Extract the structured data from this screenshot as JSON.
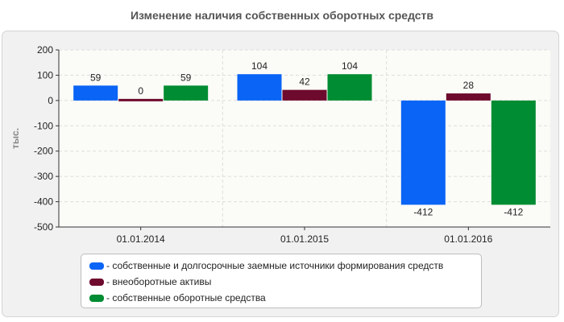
{
  "title": "Изменение наличия собственных оборотных средств",
  "colors": {
    "series": [
      "#0a64f5",
      "#6e0a2d",
      "#008c32"
    ],
    "grid": "#dddddd",
    "plot_bg": "#fbfbf7",
    "axis": "#333333"
  },
  "chart_data": {
    "type": "bar",
    "title": "Изменение наличия собственных оборотных средств",
    "ylabel": "тыс.",
    "xlabel": "",
    "categories": [
      "01.01.2014",
      "01.01.2015",
      "01.01.2016"
    ],
    "series": [
      {
        "name": "собственные и долгосрочные заемные источники формирования средств",
        "values": [
          59,
          104,
          -412
        ]
      },
      {
        "name": "внеоборотные активы",
        "values": [
          0,
          42,
          28
        ]
      },
      {
        "name": "собственные оборотные средства",
        "values": [
          59,
          104,
          -412
        ]
      }
    ],
    "ylim": [
      -500,
      200
    ],
    "yticks": [
      "200",
      "100",
      "0",
      "-100",
      "-200",
      "-300",
      "-400",
      "-500"
    ],
    "grid": true,
    "legend_position": "bottom"
  },
  "legend": [
    {
      "label": "- собственные и долгосрочные заемные источники формирования средств"
    },
    {
      "label": "- внеоборотные активы"
    },
    {
      "label": "- собственные оборотные средства"
    }
  ]
}
